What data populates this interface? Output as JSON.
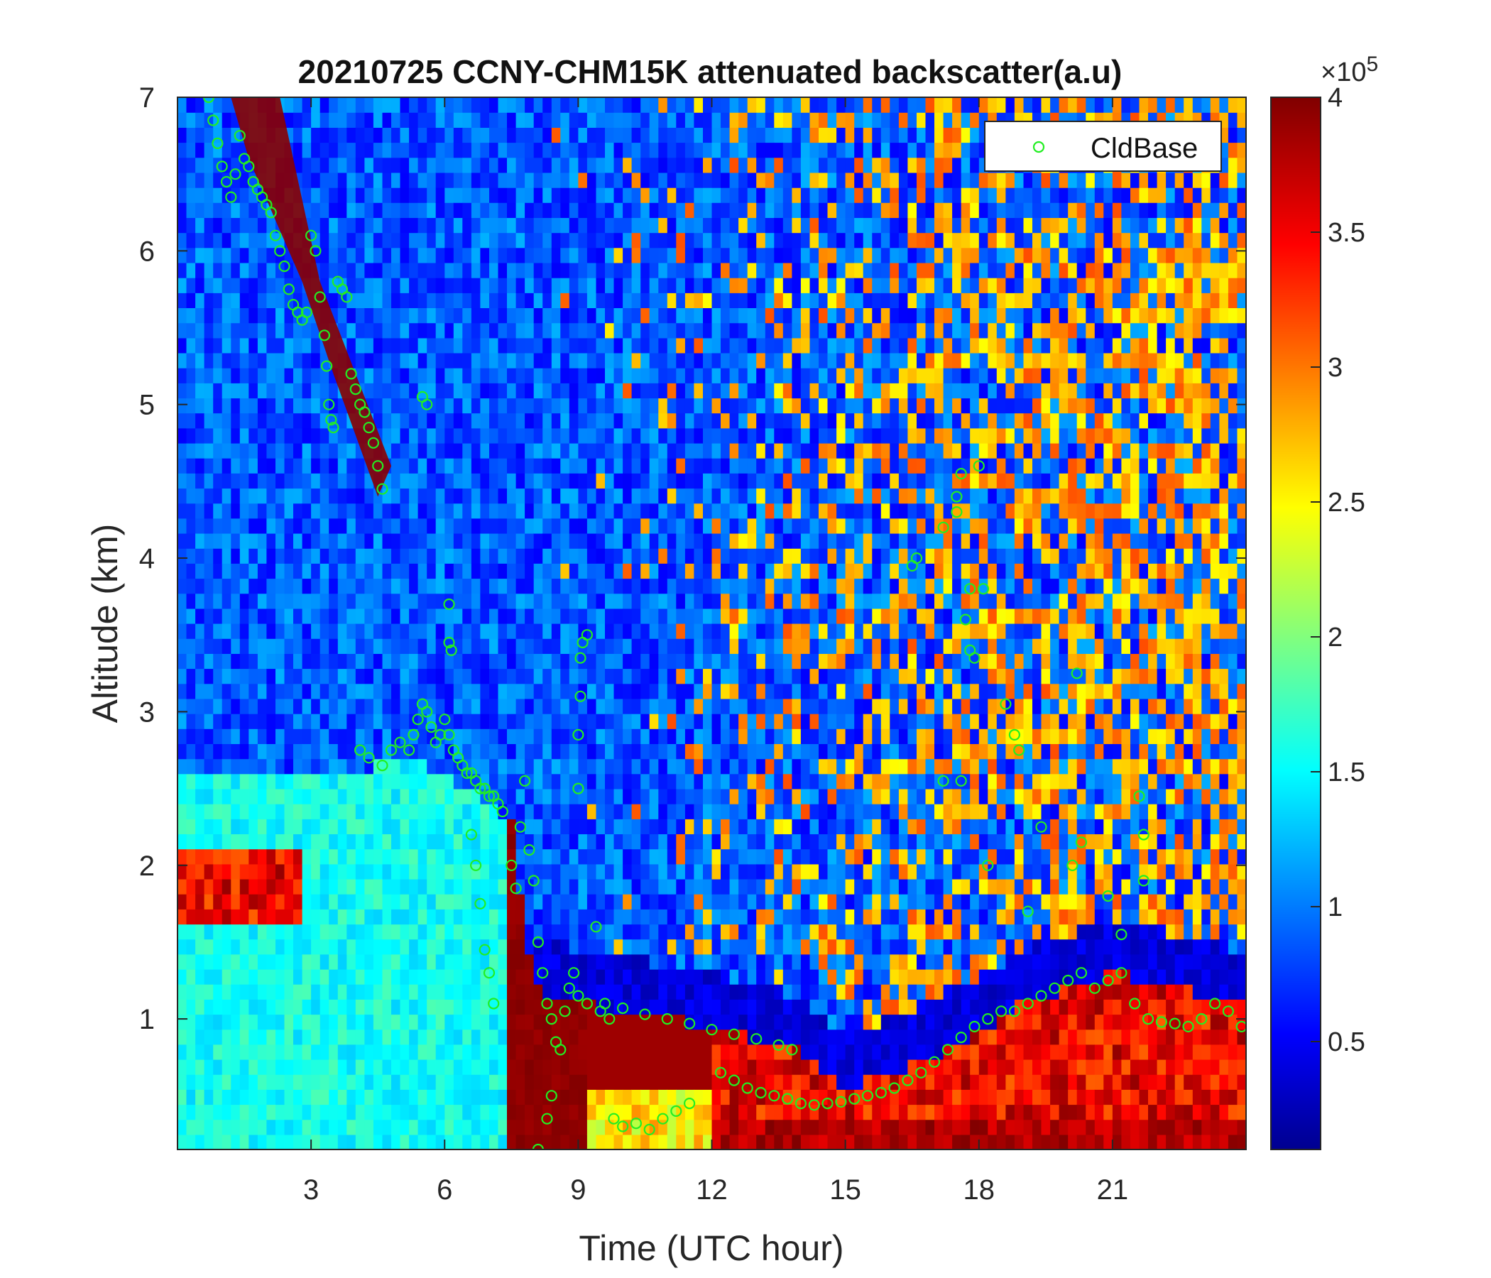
{
  "chart_data": {
    "type": "heatmap",
    "title": "20210725 CCNY-CHM15K attenuated backscatter(a.u)",
    "xlabel": "Time (UTC hour)",
    "ylabel": "Altitude (km)",
    "xlim": [
      0,
      24
    ],
    "ylim": [
      0.15,
      7
    ],
    "xticks": [
      3,
      6,
      9,
      12,
      15,
      18,
      21
    ],
    "yticks": [
      1,
      2,
      3,
      4,
      5,
      6,
      7
    ],
    "colorbar": {
      "colormap": "jet",
      "range": [
        10000,
        400000
      ],
      "multiplier_label": "×10",
      "multiplier_exponent": "5",
      "ticks": [
        0.5,
        1,
        1.5,
        2,
        2.5,
        3,
        3.5,
        4
      ]
    },
    "legend": {
      "position": "top-right",
      "entries": [
        "CldBase"
      ]
    },
    "colors": {
      "marker": "#22ee22"
    },
    "series": [
      {
        "name": "CldBase",
        "marker": "open-circle",
        "points": [
          [
            0.7,
            7.0
          ],
          [
            0.8,
            6.85
          ],
          [
            0.9,
            6.7
          ],
          [
            1.0,
            6.55
          ],
          [
            1.1,
            6.45
          ],
          [
            1.2,
            6.35
          ],
          [
            1.3,
            6.5
          ],
          [
            1.4,
            6.75
          ],
          [
            1.5,
            6.6
          ],
          [
            1.6,
            6.55
          ],
          [
            1.7,
            6.45
          ],
          [
            1.8,
            6.4
          ],
          [
            1.9,
            6.35
          ],
          [
            2.0,
            6.3
          ],
          [
            2.1,
            6.25
          ],
          [
            2.2,
            6.1
          ],
          [
            2.3,
            6.0
          ],
          [
            2.4,
            5.9
          ],
          [
            2.5,
            5.75
          ],
          [
            2.6,
            5.65
          ],
          [
            2.7,
            5.6
          ],
          [
            2.8,
            5.55
          ],
          [
            2.9,
            5.6
          ],
          [
            3.0,
            6.1
          ],
          [
            3.1,
            6.0
          ],
          [
            3.2,
            5.7
          ],
          [
            3.3,
            5.45
          ],
          [
            3.35,
            5.25
          ],
          [
            3.4,
            5.0
          ],
          [
            3.45,
            4.9
          ],
          [
            3.5,
            4.85
          ],
          [
            3.6,
            5.8
          ],
          [
            3.7,
            5.75
          ],
          [
            3.8,
            5.7
          ],
          [
            3.9,
            5.2
          ],
          [
            4.0,
            5.1
          ],
          [
            4.1,
            5.0
          ],
          [
            4.2,
            4.95
          ],
          [
            4.3,
            4.85
          ],
          [
            4.4,
            4.75
          ],
          [
            4.5,
            4.6
          ],
          [
            4.6,
            4.45
          ],
          [
            5.5,
            5.05
          ],
          [
            5.6,
            5.0
          ],
          [
            4.1,
            2.75
          ],
          [
            4.3,
            2.7
          ],
          [
            4.6,
            2.65
          ],
          [
            4.8,
            2.75
          ],
          [
            5.0,
            2.8
          ],
          [
            5.2,
            2.75
          ],
          [
            5.3,
            2.85
          ],
          [
            5.4,
            2.95
          ],
          [
            5.5,
            3.05
          ],
          [
            5.6,
            3.0
          ],
          [
            5.7,
            2.9
          ],
          [
            5.8,
            2.8
          ],
          [
            5.9,
            2.85
          ],
          [
            6.0,
            2.95
          ],
          [
            6.1,
            2.85
          ],
          [
            6.2,
            2.75
          ],
          [
            6.3,
            2.7
          ],
          [
            6.4,
            2.65
          ],
          [
            6.5,
            2.6
          ],
          [
            6.6,
            2.6
          ],
          [
            6.7,
            2.55
          ],
          [
            6.8,
            2.5
          ],
          [
            6.9,
            2.5
          ],
          [
            7.0,
            2.45
          ],
          [
            7.1,
            2.45
          ],
          [
            7.2,
            2.4
          ],
          [
            6.1,
            3.7
          ],
          [
            6.1,
            3.45
          ],
          [
            6.15,
            3.4
          ],
          [
            6.6,
            2.2
          ],
          [
            6.7,
            2.0
          ],
          [
            6.8,
            1.75
          ],
          [
            6.9,
            1.45
          ],
          [
            7.0,
            1.3
          ],
          [
            7.1,
            1.1
          ],
          [
            7.3,
            2.35
          ],
          [
            7.5,
            2.0
          ],
          [
            7.6,
            1.85
          ],
          [
            7.7,
            2.25
          ],
          [
            7.8,
            2.55
          ],
          [
            7.9,
            2.1
          ],
          [
            8.0,
            1.9
          ],
          [
            8.1,
            1.5
          ],
          [
            8.2,
            1.3
          ],
          [
            8.3,
            1.1
          ],
          [
            8.4,
            1.0
          ],
          [
            8.5,
            0.85
          ],
          [
            8.6,
            0.8
          ],
          [
            8.1,
            0.15
          ],
          [
            8.3,
            0.35
          ],
          [
            8.4,
            0.5
          ],
          [
            8.7,
            1.05
          ],
          [
            8.8,
            1.2
          ],
          [
            8.9,
            1.3
          ],
          [
            9.0,
            2.5
          ],
          [
            9.0,
            2.85
          ],
          [
            9.05,
            3.1
          ],
          [
            9.05,
            3.35
          ],
          [
            9.1,
            3.45
          ],
          [
            9.2,
            3.5
          ],
          [
            9.0,
            1.15
          ],
          [
            9.2,
            1.1
          ],
          [
            9.4,
            1.6
          ],
          [
            9.5,
            1.05
          ],
          [
            9.7,
            1.0
          ],
          [
            9.8,
            0.35
          ],
          [
            10.0,
            0.3
          ],
          [
            10.3,
            0.32
          ],
          [
            10.6,
            0.28
          ],
          [
            10.9,
            0.35
          ],
          [
            11.2,
            0.4
          ],
          [
            11.5,
            0.45
          ],
          [
            9.6,
            1.1
          ],
          [
            10.0,
            1.07
          ],
          [
            10.5,
            1.03
          ],
          [
            11.0,
            1.0
          ],
          [
            11.5,
            0.97
          ],
          [
            12.0,
            0.93
          ],
          [
            12.5,
            0.9
          ],
          [
            13.0,
            0.87
          ],
          [
            13.5,
            0.83
          ],
          [
            13.8,
            0.8
          ],
          [
            12.2,
            0.65
          ],
          [
            12.5,
            0.6
          ],
          [
            12.8,
            0.55
          ],
          [
            13.1,
            0.52
          ],
          [
            13.4,
            0.5
          ],
          [
            13.7,
            0.48
          ],
          [
            14.0,
            0.45
          ],
          [
            14.3,
            0.44
          ],
          [
            14.6,
            0.45
          ],
          [
            14.9,
            0.46
          ],
          [
            15.2,
            0.48
          ],
          [
            15.5,
            0.5
          ],
          [
            15.8,
            0.52
          ],
          [
            16.1,
            0.55
          ],
          [
            16.4,
            0.6
          ],
          [
            16.7,
            0.65
          ],
          [
            17.0,
            0.72
          ],
          [
            17.3,
            0.8
          ],
          [
            17.6,
            0.88
          ],
          [
            17.9,
            0.95
          ],
          [
            18.2,
            1.0
          ],
          [
            18.5,
            1.05
          ],
          [
            18.8,
            1.05
          ],
          [
            19.1,
            1.1
          ],
          [
            19.4,
            1.15
          ],
          [
            19.7,
            1.2
          ],
          [
            20.0,
            1.25
          ],
          [
            20.3,
            1.3
          ],
          [
            20.6,
            1.2
          ],
          [
            20.9,
            1.25
          ],
          [
            21.2,
            1.3
          ],
          [
            21.5,
            1.1
          ],
          [
            21.8,
            1.0
          ],
          [
            22.1,
            0.98
          ],
          [
            22.4,
            0.97
          ],
          [
            22.7,
            0.95
          ],
          [
            23.0,
            1.0
          ],
          [
            23.3,
            1.1
          ],
          [
            23.6,
            1.05
          ],
          [
            23.9,
            0.95
          ],
          [
            16.5,
            3.95
          ],
          [
            16.6,
            4.0
          ],
          [
            17.2,
            4.2
          ],
          [
            17.5,
            4.4
          ],
          [
            17.6,
            4.55
          ],
          [
            17.5,
            4.3
          ],
          [
            18.0,
            4.6
          ],
          [
            18.1,
            3.8
          ],
          [
            17.7,
            3.6
          ],
          [
            17.8,
            3.4
          ],
          [
            17.9,
            3.35
          ],
          [
            17.8,
            3.8
          ],
          [
            18.6,
            3.05
          ],
          [
            18.8,
            2.85
          ],
          [
            18.9,
            2.75
          ],
          [
            20.2,
            3.25
          ],
          [
            19.4,
            2.25
          ],
          [
            20.1,
            2.0
          ],
          [
            20.3,
            2.15
          ],
          [
            20.9,
            1.8
          ],
          [
            21.2,
            1.55
          ],
          [
            21.6,
            2.45
          ],
          [
            21.7,
            2.2
          ],
          [
            21.7,
            1.9
          ],
          [
            17.2,
            2.55
          ],
          [
            17.6,
            2.55
          ],
          [
            18.2,
            2.0
          ],
          [
            19.1,
            1.7
          ]
        ]
      }
    ]
  }
}
